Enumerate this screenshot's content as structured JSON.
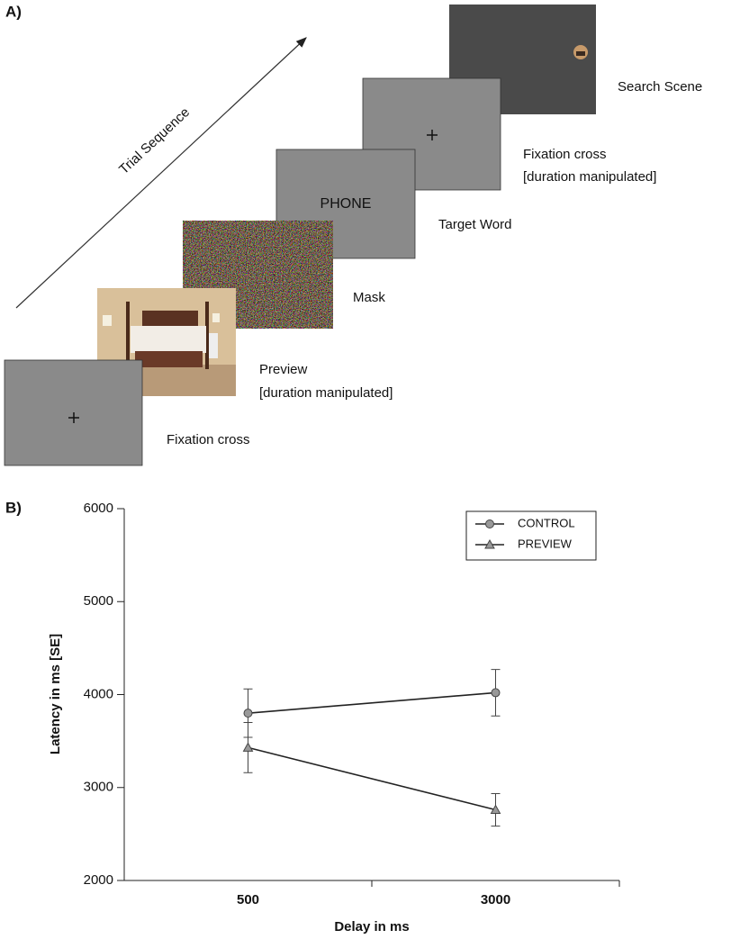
{
  "panel_a": {
    "label": "A)",
    "arrow_label": "Trial Sequence",
    "frames": [
      {
        "caption": "Search Scene"
      },
      {
        "caption": "Fixation cross",
        "detail": "[duration manipulated]"
      },
      {
        "caption": "Target Word",
        "content": "PHONE"
      },
      {
        "caption": "Mask"
      },
      {
        "caption": "Preview",
        "detail": "[duration manipulated]"
      },
      {
        "caption": "Fixation cross"
      }
    ]
  },
  "panel_b": {
    "label": "B)"
  },
  "chart_data": {
    "type": "line",
    "x_label": "Delay in ms",
    "y_label": "Latency in ms [SE]",
    "categories": [
      "500",
      "3000"
    ],
    "series": [
      {
        "name": "CONTROL",
        "marker": "circle",
        "color": "#999999",
        "values": [
          3800,
          4020
        ],
        "errors": [
          260,
          250
        ]
      },
      {
        "name": "PREVIEW",
        "marker": "triangle",
        "color": "#999999",
        "values": [
          3430,
          2760
        ],
        "errors": [
          270,
          175
        ]
      }
    ],
    "ylim": [
      2000,
      6000
    ],
    "yticks": [
      2000,
      3000,
      4000,
      5000,
      6000
    ],
    "grid": false,
    "legend": "upper right"
  }
}
